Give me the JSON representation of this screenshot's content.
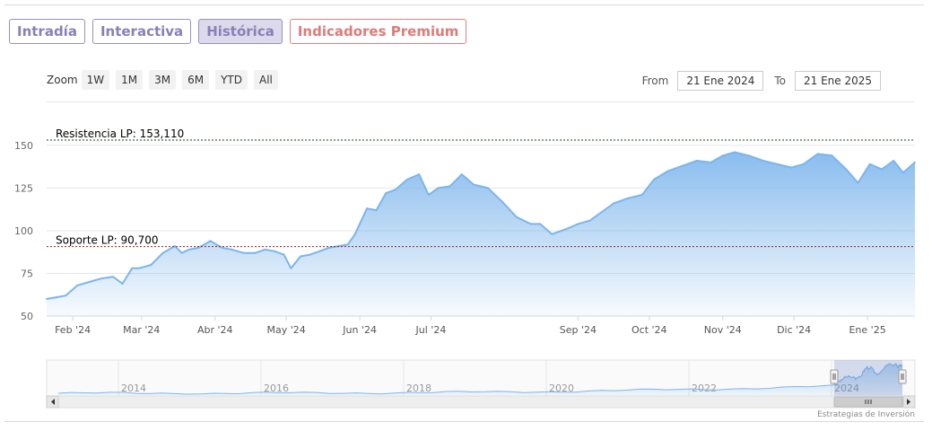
{
  "tabs": [
    {
      "label": "Intradía",
      "active": false
    },
    {
      "label": "Interactiva",
      "active": false
    },
    {
      "label": "Histórica",
      "active": true
    },
    {
      "label": "Indicadores Premium",
      "active": false
    }
  ],
  "zoom": {
    "label": "Zoom",
    "buttons": [
      "1W",
      "1M",
      "3M",
      "6M",
      "YTD",
      "All"
    ]
  },
  "range": {
    "from_label": "From",
    "from_value": "21 Ene 2024",
    "to_label": "To",
    "to_value": "21 Ene 2025"
  },
  "colors": {
    "line": "#7cb5ec",
    "resistance": "#1a3d1a",
    "support": "#a01818",
    "tab_border": "#9b8fc0",
    "premium": "#e07a7a"
  },
  "chart_data": {
    "type": "area",
    "ylim": [
      50,
      153.11
    ],
    "yticks": [
      50,
      75,
      100,
      125,
      150
    ],
    "xlim": [
      "2024-01-21",
      "2025-01-21"
    ],
    "xticks": [
      {
        "date": "2024-02-01",
        "label": "Feb '24"
      },
      {
        "date": "2024-03-01",
        "label": "Mar '24"
      },
      {
        "date": "2024-04-01",
        "label": "Abr '24"
      },
      {
        "date": "2024-05-01",
        "label": "May '24"
      },
      {
        "date": "2024-06-01",
        "label": "Jun '24"
      },
      {
        "date": "2024-07-01",
        "label": "Jul '24"
      },
      {
        "date": "2024-09-01",
        "label": "Sep '24"
      },
      {
        "date": "2024-10-01",
        "label": "Oct '24"
      },
      {
        "date": "2024-11-01",
        "label": "Nov '24"
      },
      {
        "date": "2024-12-01",
        "label": "Dic '24"
      },
      {
        "date": "2025-01-01",
        "label": "Ene '25"
      }
    ],
    "series": [
      {
        "x": [
          "2024-01-21",
          "2024-01-25",
          "2024-01-29",
          "2024-02-03",
          "2024-02-08",
          "2024-02-13",
          "2024-02-18",
          "2024-02-22",
          "2024-02-26",
          "2024-02-29",
          "2024-03-05",
          "2024-03-10",
          "2024-03-15",
          "2024-03-18",
          "2024-03-21",
          "2024-03-25",
          "2024-03-30",
          "2024-04-04",
          "2024-04-08",
          "2024-04-13",
          "2024-04-18",
          "2024-04-22",
          "2024-04-26",
          "2024-04-30",
          "2024-05-03",
          "2024-05-07",
          "2024-05-11",
          "2024-05-15",
          "2024-05-19",
          "2024-05-23",
          "2024-05-27",
          "2024-05-30",
          "2024-06-04",
          "2024-06-08",
          "2024-06-12",
          "2024-06-16",
          "2024-06-21",
          "2024-06-26",
          "2024-06-30",
          "2024-07-04",
          "2024-07-09",
          "2024-07-14",
          "2024-07-19",
          "2024-07-25",
          "2024-07-31",
          "2024-08-06",
          "2024-08-12",
          "2024-08-16",
          "2024-08-21",
          "2024-08-27",
          "2024-09-01",
          "2024-09-06",
          "2024-09-11",
          "2024-09-16",
          "2024-09-22",
          "2024-09-28",
          "2024-10-03",
          "2024-10-09",
          "2024-10-15",
          "2024-10-21",
          "2024-10-27",
          "2024-11-01",
          "2024-11-06",
          "2024-11-12",
          "2024-11-18",
          "2024-11-24",
          "2024-11-30",
          "2024-12-05",
          "2024-12-11",
          "2024-12-17",
          "2024-12-23",
          "2024-12-28",
          "2025-01-02",
          "2025-01-07",
          "2025-01-12",
          "2025-01-16",
          "2025-01-21"
        ],
        "y": [
          60,
          61,
          62,
          68,
          70,
          72,
          73,
          69,
          78,
          78,
          80,
          87,
          91,
          87,
          89,
          90,
          94,
          90,
          89,
          87,
          87,
          89,
          88,
          86,
          78,
          85,
          86,
          88,
          90,
          91,
          92,
          98,
          113,
          112,
          122,
          124,
          130,
          133,
          121,
          125,
          126,
          133,
          127,
          125,
          117,
          108,
          104,
          104,
          98,
          101,
          104,
          106,
          111,
          116,
          119,
          121,
          130,
          135,
          138,
          141,
          140,
          144,
          146,
          144,
          141,
          139,
          137,
          139,
          145,
          144,
          136,
          128,
          139,
          136,
          141,
          134,
          140
        ]
      }
    ],
    "resistance": {
      "value": 153.11,
      "label": "Resistencia LP: 153,110"
    },
    "support": {
      "value": 90.7,
      "label": "Soporte LP: 90,700"
    },
    "navigator": {
      "years": [
        "2014",
        "2016",
        "2018",
        "2020",
        "2022",
        "2024"
      ]
    },
    "credits": "Estrategias de Inversión"
  }
}
